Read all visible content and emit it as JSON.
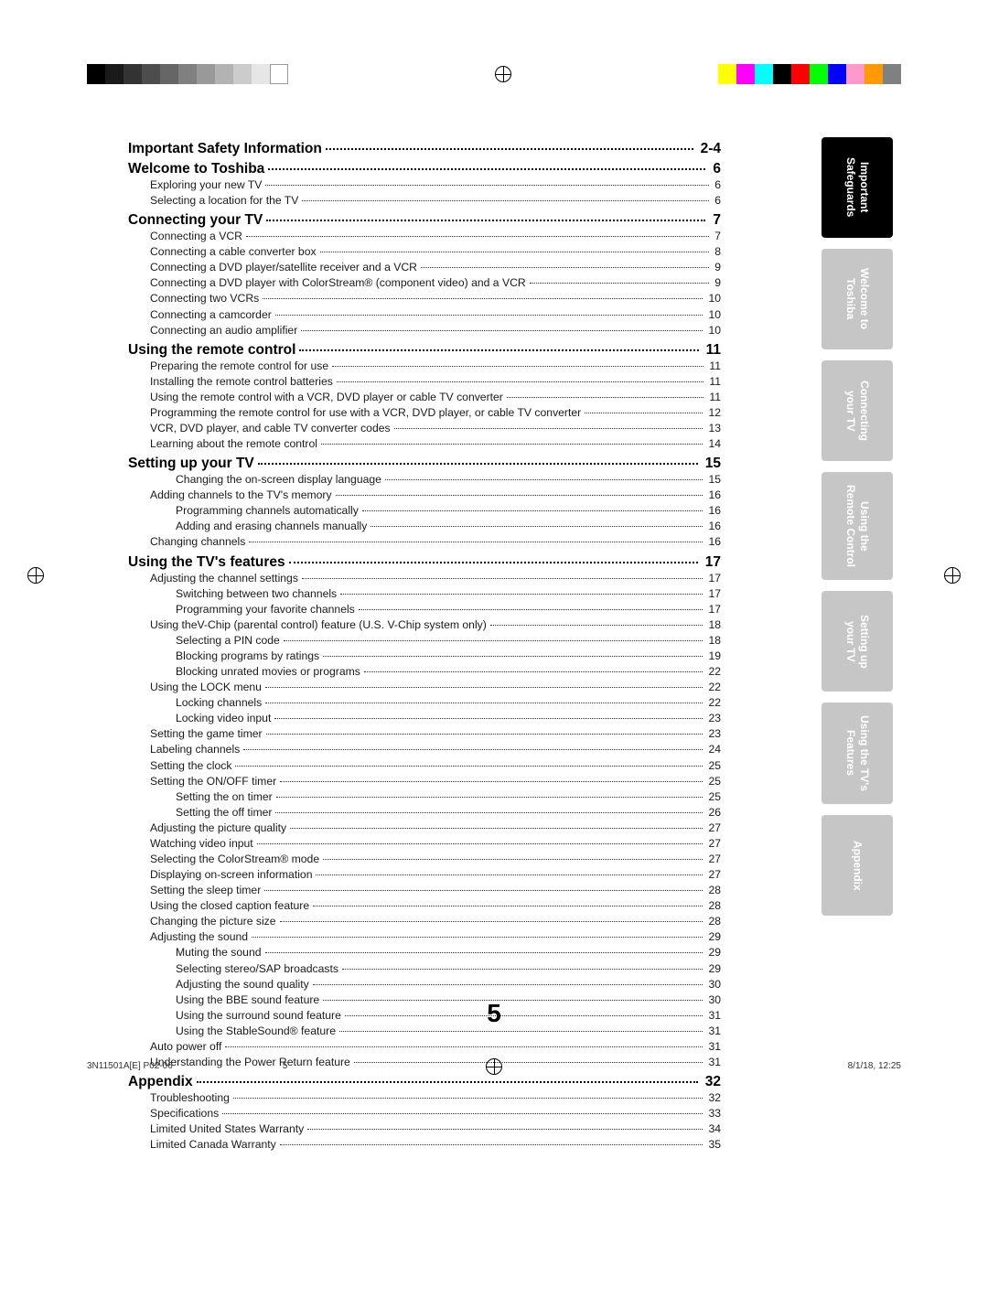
{
  "colorBars": {
    "grayscale": [
      "#000000",
      "#1a1a1a",
      "#333333",
      "#4d4d4d",
      "#666666",
      "#808080",
      "#999999",
      "#b3b3b3",
      "#cccccc",
      "#e6e6e6",
      "#ffffff"
    ],
    "grayBorders": [
      "",
      "",
      "",
      "",
      "",
      "",
      "",
      "",
      "",
      "",
      "#999"
    ],
    "rgb": [
      "#ffff00",
      "#ff00ff",
      "#00ffff",
      "#000000",
      "#ff0000",
      "#00ff00",
      "#0000ff",
      "#ff99cc",
      "#ff9900",
      "#808080"
    ]
  },
  "pageNumber": "5",
  "footer": {
    "leftA": "3N11501A[E] P02-06",
    "leftB": "5",
    "right": "8/1/18, 12:25"
  },
  "sideTabs": [
    {
      "label": "Important\nSafeguards",
      "class": "black"
    },
    {
      "label": "Welcome to\nToshiba",
      "class": "gray"
    },
    {
      "label": "Connecting\nyour TV",
      "class": "gray"
    },
    {
      "label": "Using the\nRemote Control",
      "class": "gray"
    },
    {
      "label": "Setting up\nyour TV",
      "class": "gray"
    },
    {
      "label": "Using the TV's\nFeatures",
      "class": "gray"
    },
    {
      "label": "Appendix",
      "class": "gray"
    }
  ],
  "toc": [
    {
      "type": "heading",
      "label": "Important Safety Information",
      "page": "2-4"
    },
    {
      "type": "heading",
      "label": "Welcome to Toshiba",
      "page": "6"
    },
    {
      "type": "line",
      "indent": 1,
      "label": "Exploring your new TV",
      "page": "6"
    },
    {
      "type": "line",
      "indent": 1,
      "label": "Selecting a location for the TV",
      "page": "6"
    },
    {
      "type": "heading",
      "label": "Connecting your TV",
      "page": "7"
    },
    {
      "type": "line",
      "indent": 1,
      "label": "Connecting a VCR",
      "page": "7"
    },
    {
      "type": "line",
      "indent": 1,
      "label": "Connecting a cable converter box",
      "page": "8"
    },
    {
      "type": "line",
      "indent": 1,
      "label": "Connecting a DVD player/satellite receiver and a VCR",
      "page": "9"
    },
    {
      "type": "line",
      "indent": 1,
      "label": "Connecting a DVD player with ColorStream® (component video) and a VCR",
      "page": "9"
    },
    {
      "type": "line",
      "indent": 1,
      "label": "Connecting two VCRs",
      "page": "10"
    },
    {
      "type": "line",
      "indent": 1,
      "label": "Connecting a camcorder",
      "page": "10"
    },
    {
      "type": "line",
      "indent": 1,
      "label": "Connecting an audio amplifier",
      "page": "10"
    },
    {
      "type": "heading",
      "label": "Using the remote control",
      "page": "11"
    },
    {
      "type": "line",
      "indent": 1,
      "label": "Preparing the remote control for use",
      "page": "11"
    },
    {
      "type": "line",
      "indent": 1,
      "label": "Installing the remote control batteries",
      "page": "11"
    },
    {
      "type": "line",
      "indent": 1,
      "label": "Using the remote control with a VCR, DVD player or cable TV converter",
      "page": "11"
    },
    {
      "type": "line",
      "indent": 1,
      "label": "Programming the remote control for use with a VCR, DVD player, or cable TV converter",
      "page": "12"
    },
    {
      "type": "line",
      "indent": 1,
      "label": "VCR, DVD player, and cable TV converter codes",
      "page": "13"
    },
    {
      "type": "line",
      "indent": 1,
      "label": "Learning about the remote control",
      "page": "14"
    },
    {
      "type": "heading",
      "label": "Setting up your TV",
      "page": "15"
    },
    {
      "type": "line",
      "indent": 2,
      "label": "Changing the on-screen display language",
      "page": "15"
    },
    {
      "type": "line",
      "indent": 1,
      "label": "Adding channels to the TV's memory",
      "page": "16"
    },
    {
      "type": "line",
      "indent": 2,
      "label": "Programming channels automatically",
      "page": "16"
    },
    {
      "type": "line",
      "indent": 2,
      "label": "Adding and erasing channels manually",
      "page": "16"
    },
    {
      "type": "line",
      "indent": 1,
      "label": "Changing channels",
      "page": "16"
    },
    {
      "type": "heading",
      "label": "Using the TV's features",
      "page": "17"
    },
    {
      "type": "line",
      "indent": 1,
      "label": "Adjusting the channel settings",
      "page": "17"
    },
    {
      "type": "line",
      "indent": 2,
      "label": "Switching between two channels",
      "page": "17"
    },
    {
      "type": "line",
      "indent": 2,
      "label": "Programming your favorite channels",
      "page": "17"
    },
    {
      "type": "line",
      "indent": 1,
      "label": "Using theV-Chip (parental control) feature (U.S. V-Chip system only)",
      "page": "18"
    },
    {
      "type": "line",
      "indent": 2,
      "label": "Selecting a PIN code",
      "page": "18"
    },
    {
      "type": "line",
      "indent": 2,
      "label": "Blocking programs by ratings",
      "page": "19"
    },
    {
      "type": "line",
      "indent": 2,
      "label": "Blocking unrated movies or programs",
      "page": "22"
    },
    {
      "type": "line",
      "indent": 1,
      "label": "Using the LOCK menu",
      "page": "22"
    },
    {
      "type": "line",
      "indent": 2,
      "label": "Locking channels",
      "page": "22"
    },
    {
      "type": "line",
      "indent": 2,
      "label": "Locking video input",
      "page": "23"
    },
    {
      "type": "line",
      "indent": 1,
      "label": "Setting the game timer",
      "page": "23"
    },
    {
      "type": "line",
      "indent": 1,
      "label": "Labeling channels",
      "page": "24"
    },
    {
      "type": "line",
      "indent": 1,
      "label": "Setting the clock",
      "page": "25"
    },
    {
      "type": "line",
      "indent": 1,
      "label": "Setting the ON/OFF timer",
      "page": "25"
    },
    {
      "type": "line",
      "indent": 2,
      "label": "Setting the on timer",
      "page": "25"
    },
    {
      "type": "line",
      "indent": 2,
      "label": "Setting the off timer",
      "page": "26"
    },
    {
      "type": "line",
      "indent": 1,
      "label": "Adjusting the picture quality",
      "page": "27"
    },
    {
      "type": "line",
      "indent": 1,
      "label": "Watching video input",
      "page": "27"
    },
    {
      "type": "line",
      "indent": 1,
      "label": "Selecting the ColorStream® mode",
      "page": "27"
    },
    {
      "type": "line",
      "indent": 1,
      "label": "Displaying on-screen information",
      "page": "27"
    },
    {
      "type": "line",
      "indent": 1,
      "label": "Setting the sleep timer",
      "page": "28"
    },
    {
      "type": "line",
      "indent": 1,
      "label": "Using the closed caption feature",
      "page": "28"
    },
    {
      "type": "line",
      "indent": 1,
      "label": "Changing the picture size",
      "page": "28"
    },
    {
      "type": "line",
      "indent": 1,
      "label": "Adjusting the sound",
      "page": "29"
    },
    {
      "type": "line",
      "indent": 2,
      "label": "Muting the sound",
      "page": "29"
    },
    {
      "type": "line",
      "indent": 2,
      "label": "Selecting stereo/SAP broadcasts",
      "page": "29"
    },
    {
      "type": "line",
      "indent": 2,
      "label": "Adjusting the sound quality",
      "page": "30"
    },
    {
      "type": "line",
      "indent": 2,
      "label": "Using the BBE sound feature",
      "page": "30"
    },
    {
      "type": "line",
      "indent": 2,
      "label": "Using the surround sound feature",
      "page": "31"
    },
    {
      "type": "line",
      "indent": 2,
      "label": "Using the StableSound® feature",
      "page": "31"
    },
    {
      "type": "line",
      "indent": 1,
      "label": "Auto power off",
      "page": "31"
    },
    {
      "type": "line",
      "indent": 1,
      "label": "Understanding the Power Return feature",
      "page": "31"
    },
    {
      "type": "heading",
      "label": "Appendix",
      "page": "32"
    },
    {
      "type": "line",
      "indent": 1,
      "label": "Troubleshooting",
      "page": "32"
    },
    {
      "type": "line",
      "indent": 1,
      "label": "Specifications",
      "page": "33"
    },
    {
      "type": "line",
      "indent": 1,
      "label": "Limited United States Warranty",
      "page": "34"
    },
    {
      "type": "line",
      "indent": 1,
      "label": "Limited Canada Warranty",
      "page": "35"
    }
  ]
}
